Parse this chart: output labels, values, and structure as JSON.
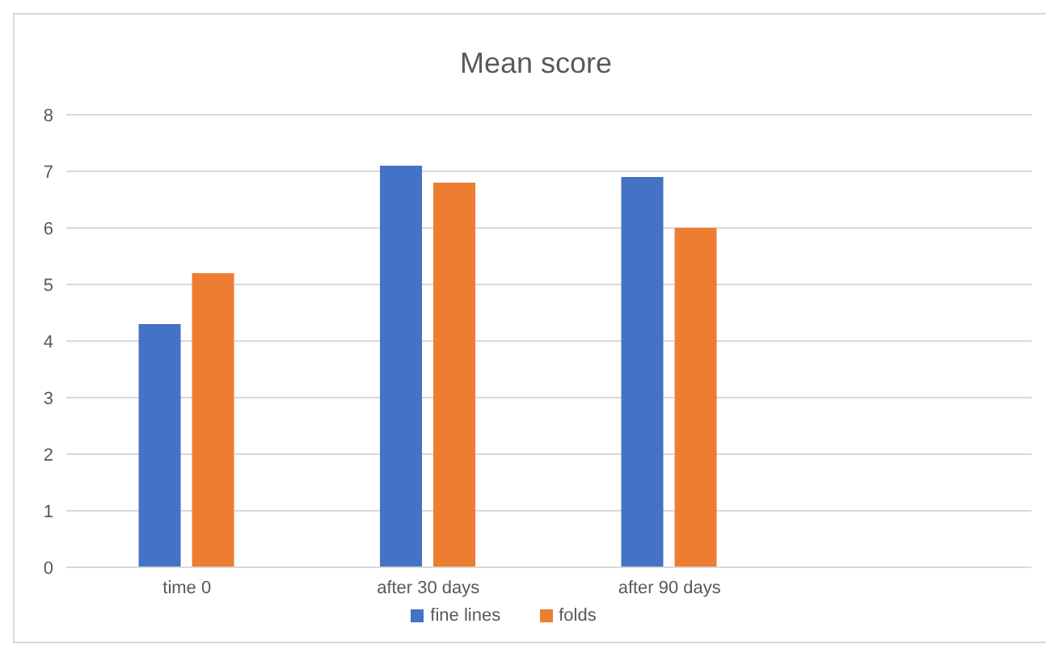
{
  "chart_data": {
    "type": "bar",
    "title": "Mean score",
    "categories": [
      "time 0",
      "after 30 days",
      "after 90 days",
      null
    ],
    "series": [
      {
        "name": "fine lines",
        "color": "#4472c4",
        "values": [
          4.3,
          7.1,
          6.9,
          null
        ]
      },
      {
        "name": "folds",
        "color": "#ed7d31",
        "values": [
          5.2,
          6.8,
          6.0,
          null
        ]
      }
    ],
    "ylim": [
      0,
      8
    ],
    "yticks": [
      0,
      1,
      2,
      3,
      4,
      5,
      6,
      7,
      8
    ],
    "grid": "y",
    "legend": "bottom"
  }
}
